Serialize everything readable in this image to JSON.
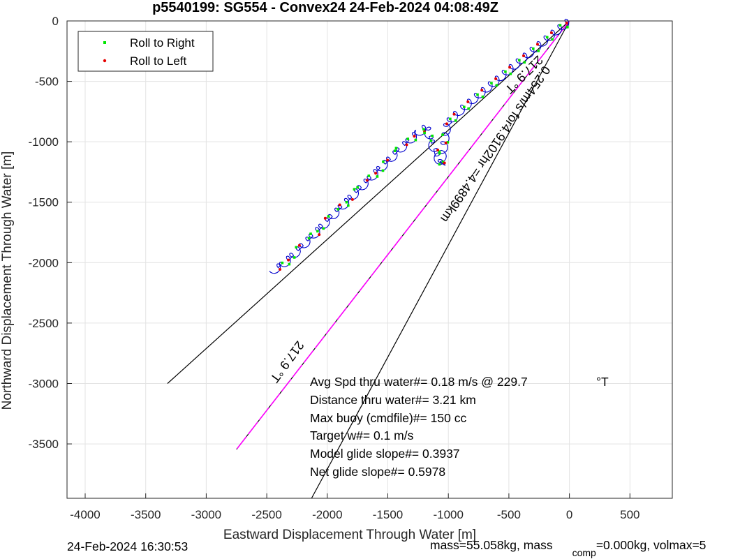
{
  "chart_data": {
    "type": "line",
    "title": "p5540199: SG554 - Convex24 24-Feb-2024 04:08:49Z",
    "xlabel": "Eastward Displacement Through Water [m]",
    "ylabel": "Northward Displacement Through Water [m]",
    "xlim": [
      -4150,
      850
    ],
    "ylim": [
      -3950,
      0
    ],
    "xticks": [
      -4000,
      -3500,
      -3000,
      -2500,
      -2000,
      -1500,
      -1000,
      -500,
      0,
      500
    ],
    "yticks": [
      0,
      -500,
      -1000,
      -1500,
      -2000,
      -2500,
      -3000,
      -3500
    ],
    "grid": true,
    "legend": {
      "position": "top-left",
      "entries": [
        {
          "label": "Roll to Right",
          "color": "#00e600"
        },
        {
          "label": "Roll to Left",
          "color": "#e60000"
        }
      ]
    },
    "track_color": "#0000cc",
    "track": {
      "x": [
        0,
        -115,
        -230,
        -345,
        -460,
        -575,
        -690,
        -805,
        -920,
        -1005,
        -1060,
        -1110,
        -1150,
        -1180,
        -1260,
        -1340,
        -1420,
        -1500,
        -1580,
        -1660,
        -1740,
        -1820,
        -1900,
        -1980,
        -2060,
        -2140,
        -2220,
        -2300,
        -2380,
        -2450
      ],
      "y": [
        0,
        -90,
        -185,
        -280,
        -375,
        -470,
        -565,
        -660,
        -760,
        -845,
        -1195,
        -1090,
        -985,
        -880,
        -935,
        -1010,
        -1085,
        -1165,
        -1240,
        -1320,
        -1400,
        -1480,
        -1560,
        -1640,
        -1720,
        -1800,
        -1880,
        -1960,
        -2030,
        -2065
      ]
    },
    "lines": [
      {
        "name": "heading-line-upper",
        "color": "#000000",
        "dash": "solid",
        "x": [
          0,
          -3320
        ],
        "y": [
          0,
          -3000
        ]
      },
      {
        "name": "heading-line-lower",
        "color": "#000000",
        "dash": "solid",
        "x": [
          0,
          -2130
        ],
        "y": [
          0,
          -3950
        ]
      },
      {
        "name": "current-line",
        "color": "#ff00ff",
        "dash": "dashed",
        "x": [
          0,
          -2750
        ],
        "y": [
          0,
          -3545
        ]
      }
    ],
    "rotated_labels": [
      {
        "text": "217.9 °T",
        "x": -400,
        "y": -420,
        "angle_deg": 45
      },
      {
        "text": "0.254m/s for4.9102hr =4.4899km",
        "x": -640,
        "y": -1000,
        "angle_deg": 56
      },
      {
        "text": "217.9 °T",
        "x": -2360,
        "y": -2800,
        "angle_deg": 54
      }
    ],
    "annotations": [
      "Avg Spd thru water#=  0.18 m/s @ 229.7",
      "Distance thru water#=  3.21 km",
      "Max buoy (cmdfile)#= 150 cc",
      "Target w#= 0.1 m/s",
      "Model glide slope#= 0.3937",
      "Net glide slope#= 0.5978"
    ],
    "annotation_unit": "°T"
  },
  "footer": {
    "timestamp": "24-Feb-2024 16:30:53",
    "mass_prefix": "mass=55.058kg, mass",
    "mass_subscript": "comp",
    "mass_suffix": "=0.000kg, volmax=5"
  }
}
